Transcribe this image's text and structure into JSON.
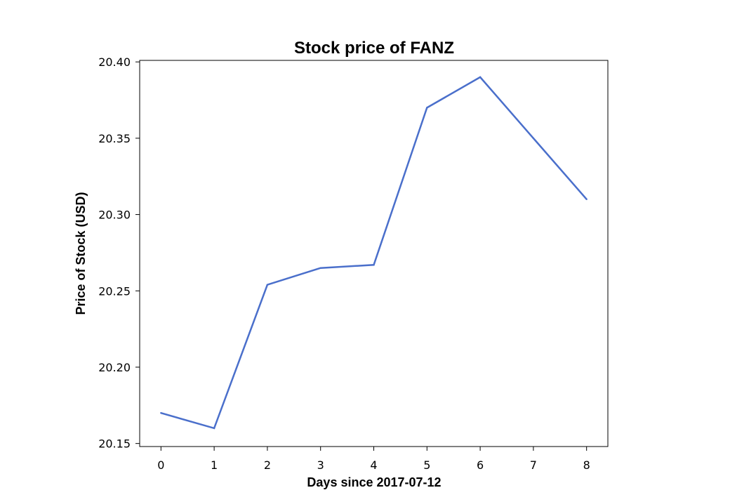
{
  "chart_data": {
    "type": "line",
    "title": "Stock price of FANZ",
    "xlabel": "Days since 2017-07-12",
    "ylabel": "Price of Stock (USD)",
    "x": [
      0,
      1,
      2,
      3,
      4,
      5,
      6,
      7,
      8
    ],
    "series": [
      {
        "values": [
          20.17,
          20.16,
          20.254,
          20.265,
          20.267,
          20.37,
          20.39,
          20.35,
          20.31
        ],
        "color": "#4a6fcb"
      }
    ],
    "xlim": [
      -0.4,
      8.4
    ],
    "ylim": [
      20.148,
      20.401
    ],
    "xticks": [
      "0",
      "1",
      "2",
      "3",
      "4",
      "5",
      "6",
      "7",
      "8"
    ],
    "yticks": [
      "20.15",
      "20.20",
      "20.25",
      "20.30",
      "20.35",
      "20.40"
    ],
    "grid": false,
    "legend": "none"
  }
}
